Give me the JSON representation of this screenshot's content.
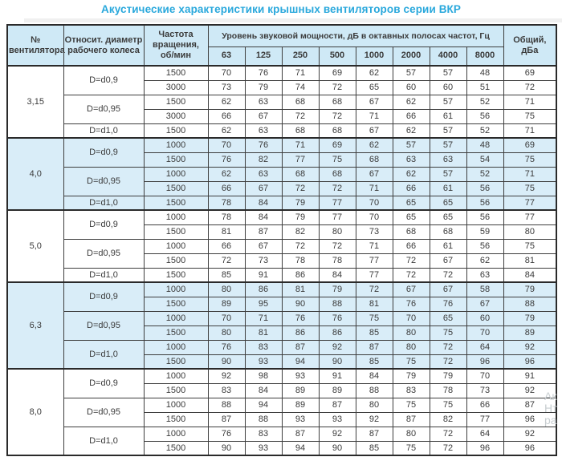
{
  "page": {
    "title": "Акустические характеристики крышных вентиляторов серии ВКР",
    "title_color": "#29a8dc"
  },
  "table": {
    "headers": {
      "fan_number": "№ вентилятора",
      "rel_diameter": "Относит. диаметр рабочего колеса",
      "rotation": "Частота вращения, об/мин",
      "octave_group": "Уровень звуковой мощности, дБ в октавных полосах частот, Гц",
      "frequencies": [
        "63",
        "125",
        "250",
        "500",
        "1000",
        "2000",
        "4000",
        "8000"
      ],
      "total": "Общий, дБа"
    },
    "groups": [
      {
        "fan": "3,15",
        "shaded": false,
        "subgroups": [
          {
            "diameter": "D=d0,9",
            "rows": [
              {
                "rpm": "1500",
                "values": [
                  "70",
                  "76",
                  "71",
                  "69",
                  "62",
                  "57",
                  "57",
                  "48"
                ],
                "total": "69"
              },
              {
                "rpm": "3000",
                "values": [
                  "73",
                  "79",
                  "74",
                  "72",
                  "65",
                  "60",
                  "60",
                  "51"
                ],
                "total": "72"
              }
            ]
          },
          {
            "diameter": "D=d0,95",
            "rows": [
              {
                "rpm": "1500",
                "values": [
                  "62",
                  "63",
                  "68",
                  "68",
                  "67",
                  "62",
                  "57",
                  "52"
                ],
                "total": "71"
              },
              {
                "rpm": "3000",
                "values": [
                  "66",
                  "67",
                  "72",
                  "72",
                  "71",
                  "66",
                  "61",
                  "56"
                ],
                "total": "75"
              }
            ]
          },
          {
            "diameter": "D=d1,0",
            "rows": [
              {
                "rpm": "1500",
                "values": [
                  "62",
                  "63",
                  "68",
                  "68",
                  "67",
                  "62",
                  "57",
                  "52"
                ],
                "total": "71"
              }
            ]
          }
        ]
      },
      {
        "fan": "4,0",
        "shaded": true,
        "subgroups": [
          {
            "diameter": "D=d0,9",
            "rows": [
              {
                "rpm": "1000",
                "values": [
                  "70",
                  "76",
                  "71",
                  "69",
                  "62",
                  "57",
                  "57",
                  "48"
                ],
                "total": "69"
              },
              {
                "rpm": "1500",
                "values": [
                  "76",
                  "82",
                  "77",
                  "75",
                  "68",
                  "63",
                  "63",
                  "54"
                ],
                "total": "75"
              }
            ]
          },
          {
            "diameter": "D=d0,95",
            "rows": [
              {
                "rpm": "1000",
                "values": [
                  "62",
                  "63",
                  "68",
                  "68",
                  "67",
                  "62",
                  "57",
                  "52"
                ],
                "total": "71"
              },
              {
                "rpm": "1500",
                "values": [
                  "66",
                  "67",
                  "72",
                  "72",
                  "71",
                  "66",
                  "61",
                  "56"
                ],
                "total": "75"
              }
            ]
          },
          {
            "diameter": "D=d1,0",
            "rows": [
              {
                "rpm": "1500",
                "values": [
                  "78",
                  "84",
                  "79",
                  "77",
                  "70",
                  "65",
                  "65",
                  "56"
                ],
                "total": "77"
              }
            ]
          }
        ]
      },
      {
        "fan": "5,0",
        "shaded": false,
        "subgroups": [
          {
            "diameter": "D=d0,9",
            "rows": [
              {
                "rpm": "1000",
                "values": [
                  "78",
                  "84",
                  "79",
                  "77",
                  "70",
                  "65",
                  "65",
                  "56"
                ],
                "total": "77"
              },
              {
                "rpm": "1500",
                "values": [
                  "81",
                  "87",
                  "82",
                  "80",
                  "73",
                  "68",
                  "68",
                  "59"
                ],
                "total": "80"
              }
            ]
          },
          {
            "diameter": "D=d0,95",
            "rows": [
              {
                "rpm": "1000",
                "values": [
                  "66",
                  "67",
                  "72",
                  "72",
                  "71",
                  "66",
                  "61",
                  "56"
                ],
                "total": "75"
              },
              {
                "rpm": "1500",
                "values": [
                  "72",
                  "73",
                  "78",
                  "78",
                  "77",
                  "72",
                  "67",
                  "62"
                ],
                "total": "81"
              }
            ]
          },
          {
            "diameter": "D=d1,0",
            "rows": [
              {
                "rpm": "1500",
                "values": [
                  "85",
                  "91",
                  "86",
                  "84",
                  "77",
                  "72",
                  "72",
                  "63"
                ],
                "total": "84"
              }
            ]
          }
        ]
      },
      {
        "fan": "6,3",
        "shaded": true,
        "subgroups": [
          {
            "diameter": "D=d0,9",
            "rows": [
              {
                "rpm": "1000",
                "values": [
                  "80",
                  "86",
                  "81",
                  "79",
                  "72",
                  "67",
                  "67",
                  "58"
                ],
                "total": "79"
              },
              {
                "rpm": "1500",
                "values": [
                  "89",
                  "95",
                  "90",
                  "88",
                  "81",
                  "76",
                  "76",
                  "67"
                ],
                "total": "88"
              }
            ]
          },
          {
            "diameter": "D=d0,95",
            "rows": [
              {
                "rpm": "1000",
                "values": [
                  "70",
                  "71",
                  "76",
                  "76",
                  "75",
                  "70",
                  "65",
                  "60"
                ],
                "total": "79"
              },
              {
                "rpm": "1500",
                "values": [
                  "80",
                  "81",
                  "86",
                  "86",
                  "85",
                  "80",
                  "75",
                  "70"
                ],
                "total": "89"
              }
            ]
          },
          {
            "diameter": "D=d1,0",
            "rows": [
              {
                "rpm": "1000",
                "values": [
                  "76",
                  "83",
                  "87",
                  "92",
                  "87",
                  "80",
                  "72",
                  "64"
                ],
                "total": "92"
              },
              {
                "rpm": "1500",
                "values": [
                  "90",
                  "93",
                  "94",
                  "90",
                  "85",
                  "75",
                  "72",
                  "96"
                ],
                "total": "96"
              }
            ]
          }
        ]
      },
      {
        "fan": "8,0",
        "shaded": false,
        "subgroups": [
          {
            "diameter": "D=d0,9",
            "rows": [
              {
                "rpm": "1000",
                "values": [
                  "92",
                  "98",
                  "93",
                  "91",
                  "84",
                  "79",
                  "79",
                  "70"
                ],
                "total": "91"
              },
              {
                "rpm": "1500",
                "values": [
                  "83",
                  "84",
                  "89",
                  "89",
                  "88",
                  "83",
                  "78",
                  "73"
                ],
                "total": "92"
              }
            ]
          },
          {
            "diameter": "D=d0,95",
            "rows": [
              {
                "rpm": "1000",
                "values": [
                  "88",
                  "94",
                  "89",
                  "87",
                  "80",
                  "75",
                  "75",
                  "66"
                ],
                "total": "87"
              },
              {
                "rpm": "1500",
                "values": [
                  "87",
                  "88",
                  "93",
                  "93",
                  "92",
                  "87",
                  "82",
                  "77"
                ],
                "total": "96"
              }
            ]
          },
          {
            "diameter": "D=d1,0",
            "rows": [
              {
                "rpm": "1000",
                "values": [
                  "76",
                  "83",
                  "87",
                  "92",
                  "87",
                  "80",
                  "72",
                  "64"
                ],
                "total": "92"
              },
              {
                "rpm": "1500",
                "values": [
                  "90",
                  "93",
                  "94",
                  "90",
                  "85",
                  "75",
                  "72",
                  "96"
                ],
                "total": "96"
              }
            ]
          }
        ]
      }
    ]
  },
  "watermark": {
    "lines": [
      "Ак",
      "Нт",
      "ра"
    ]
  }
}
